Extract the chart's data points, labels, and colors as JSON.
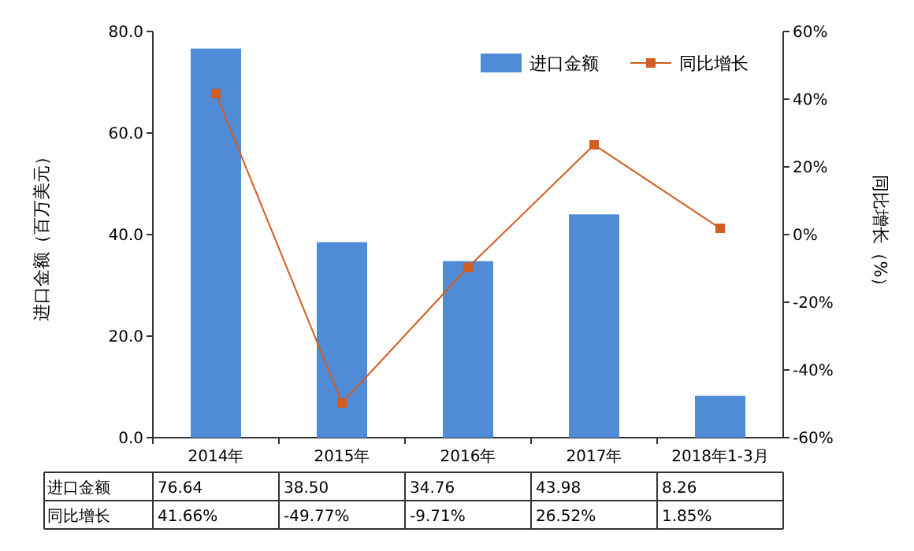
{
  "chart_data": {
    "type": "bar",
    "categories": [
      "2014年",
      "2015年",
      "2016年",
      "2017年",
      "2018年1-3月"
    ],
    "ylabel": "进口金额（百万美元）",
    "y2label": "同比增长（%）",
    "ylim": [
      0,
      80
    ],
    "yticks": [
      {
        "value": 0,
        "label": "0.0"
      },
      {
        "value": 20,
        "label": "20.0"
      },
      {
        "value": 40,
        "label": "40.0"
      },
      {
        "value": 60,
        "label": "60.0"
      },
      {
        "value": 80,
        "label": "80.0"
      }
    ],
    "y2lim": [
      -60,
      60
    ],
    "y2ticks": [
      {
        "value": -60,
        "label": "-60%"
      },
      {
        "value": -40,
        "label": "-40%"
      },
      {
        "value": -20,
        "label": "-20%"
      },
      {
        "value": 0,
        "label": "0%"
      },
      {
        "value": 20,
        "label": "20%"
      },
      {
        "value": 40,
        "label": "40%"
      },
      {
        "value": 60,
        "label": "60%"
      }
    ],
    "legend": "top right",
    "marker": "square",
    "line_style": "solid",
    "series": [
      {
        "name": "进口金额",
        "color": "#4f8bd6",
        "values": [
          76.64,
          38.5,
          34.76,
          43.98,
          8.26
        ],
        "value_labels": [
          "76.64",
          "38.50",
          "34.76",
          "43.98",
          "8.26"
        ]
      },
      {
        "name": "同比增长",
        "type": "line",
        "axis": "y2",
        "color": "#d35c1f",
        "values": [
          41.66,
          -49.77,
          -9.71,
          26.52,
          1.85
        ],
        "value_labels": [
          "41.66%",
          "-49.77%",
          "-9.71%",
          "26.52%",
          "1.85%"
        ]
      }
    ]
  }
}
